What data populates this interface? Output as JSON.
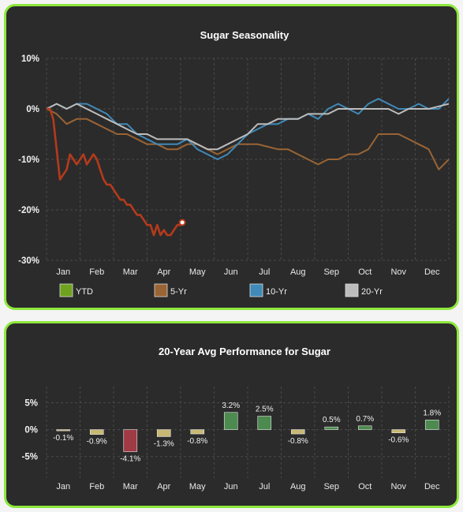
{
  "chart_data": [
    {
      "type": "line",
      "title": "Sugar Seasonality",
      "xlabel": "",
      "ylabel": "",
      "categories": [
        "Jan",
        "Feb",
        "Mar",
        "Apr",
        "May",
        "Jun",
        "Jul",
        "Aug",
        "Sep",
        "Oct",
        "Nov",
        "Dec"
      ],
      "yticks": [
        "10%",
        "0%",
        "-10%",
        "-20%",
        "-30%"
      ],
      "ylim": [
        -30,
        10
      ],
      "grid": true,
      "legend_position": "bottom",
      "series": [
        {
          "name": "YTD",
          "color": "#b53a1c",
          "legend_color": "#6fa21e",
          "x": [
            0,
            0.1,
            0.2,
            0.3,
            0.4,
            0.5,
            0.6,
            0.7,
            0.8,
            0.9,
            1.0,
            1.1,
            1.2,
            1.3,
            1.4,
            1.5,
            1.6,
            1.7,
            1.8,
            1.9,
            2.0,
            2.1,
            2.2,
            2.3,
            2.4,
            2.5,
            2.6,
            2.7,
            2.8,
            2.9,
            3.0,
            3.1,
            3.2,
            3.3,
            3.4,
            3.5,
            3.6,
            3.7,
            3.8,
            3.9,
            4.0,
            4.05
          ],
          "values": [
            0,
            0,
            -2,
            -8,
            -14,
            -13,
            -12,
            -9,
            -10,
            -11,
            -10,
            -9,
            -11,
            -10,
            -9,
            -10,
            -12,
            -14,
            -15,
            -15,
            -16,
            -17,
            -18,
            -18,
            -19,
            -19,
            -20,
            -21,
            -21,
            -22,
            -23,
            -23,
            -25,
            -23,
            -25,
            -24,
            -25,
            -25,
            -24,
            -23,
            -23,
            -22.5
          ]
        },
        {
          "name": "5-Yr",
          "color": "#9a6434",
          "x": [
            0,
            0.3,
            0.6,
            0.9,
            1.2,
            1.5,
            1.8,
            2.1,
            2.4,
            2.7,
            3.0,
            3.3,
            3.6,
            3.9,
            4.2,
            4.5,
            4.8,
            5.1,
            5.4,
            5.7,
            6.0,
            6.3,
            6.6,
            6.9,
            7.2,
            7.5,
            7.8,
            8.1,
            8.4,
            8.7,
            9.0,
            9.3,
            9.6,
            9.9,
            10.2,
            10.5,
            10.8,
            11.1,
            11.4,
            11.7,
            12.0
          ],
          "values": [
            0,
            -1,
            -3,
            -2,
            -2,
            -3,
            -4,
            -5,
            -5,
            -6,
            -7,
            -7,
            -8,
            -8,
            -7,
            -7,
            -8,
            -9,
            -8,
            -7,
            -7,
            -7,
            -7.5,
            -8,
            -8,
            -9,
            -10,
            -11,
            -10,
            -10,
            -9,
            -9,
            -8,
            -5,
            -5,
            -5,
            -6,
            -7,
            -8,
            -12,
            -10
          ]
        },
        {
          "name": "10-Yr",
          "color": "#3f8ab8",
          "x": [
            0,
            0.3,
            0.6,
            0.9,
            1.2,
            1.5,
            1.8,
            2.1,
            2.4,
            2.7,
            3.0,
            3.3,
            3.6,
            3.9,
            4.2,
            4.5,
            4.8,
            5.1,
            5.4,
            5.7,
            6.0,
            6.3,
            6.6,
            6.9,
            7.2,
            7.5,
            7.8,
            8.1,
            8.4,
            8.7,
            9.0,
            9.3,
            9.6,
            9.9,
            10.2,
            10.5,
            10.8,
            11.1,
            11.4,
            11.7,
            12.0
          ],
          "values": [
            0,
            1,
            0,
            1,
            1,
            0,
            -1,
            -3,
            -3,
            -5,
            -6,
            -7,
            -7,
            -7,
            -6,
            -8,
            -9,
            -10,
            -9,
            -7,
            -5,
            -4,
            -3,
            -3,
            -2,
            -2,
            -1,
            -2,
            0,
            1,
            0,
            -1,
            1,
            2,
            1,
            0,
            0,
            1,
            0,
            0,
            2
          ]
        },
        {
          "name": "20-Yr",
          "color": "#bdbdbd",
          "x": [
            0,
            0.3,
            0.6,
            0.9,
            1.2,
            1.5,
            1.8,
            2.1,
            2.4,
            2.7,
            3.0,
            3.3,
            3.6,
            3.9,
            4.2,
            4.5,
            4.8,
            5.1,
            5.4,
            5.7,
            6.0,
            6.3,
            6.6,
            6.9,
            7.2,
            7.5,
            7.8,
            8.1,
            8.4,
            8.7,
            9.0,
            9.3,
            9.6,
            9.9,
            10.2,
            10.5,
            10.8,
            11.1,
            11.4,
            11.7,
            12.0
          ],
          "values": [
            0,
            1,
            0,
            1,
            0,
            -1,
            -2,
            -3,
            -4,
            -5,
            -5,
            -6,
            -6,
            -6,
            -6,
            -7,
            -8,
            -8,
            -7,
            -6,
            -5,
            -3,
            -3,
            -2,
            -2,
            -2,
            -1,
            -1,
            -1,
            0,
            0,
            0,
            0,
            0,
            0,
            -1,
            0,
            0,
            0,
            0.5,
            1
          ]
        }
      ]
    },
    {
      "type": "bar",
      "title": "20-Year Avg Performance for Sugar",
      "xlabel": "",
      "ylabel": "",
      "categories": [
        "Jan",
        "Feb",
        "Mar",
        "Apr",
        "May",
        "Jun",
        "Jul",
        "Aug",
        "Sep",
        "Oct",
        "Nov",
        "Dec"
      ],
      "values": [
        -0.1,
        -0.9,
        -4.1,
        -1.3,
        -0.8,
        3.2,
        2.5,
        -0.8,
        0.5,
        0.7,
        -0.6,
        1.8
      ],
      "data_labels": [
        "-0.1%",
        "-0.9%",
        "-4.1%",
        "-1.3%",
        "-0.8%",
        "3.2%",
        "2.5%",
        "-0.8%",
        "0.5%",
        "0.7%",
        "-0.6%",
        "1.8%"
      ],
      "yticks": [
        "5%",
        "0%",
        "-5%"
      ],
      "ylim": [
        -9,
        8
      ],
      "grid": true,
      "colors": {
        "positive": "#4c8a4f",
        "negative_small": "#c8b873",
        "negative_large": "#a03a44"
      }
    }
  ]
}
